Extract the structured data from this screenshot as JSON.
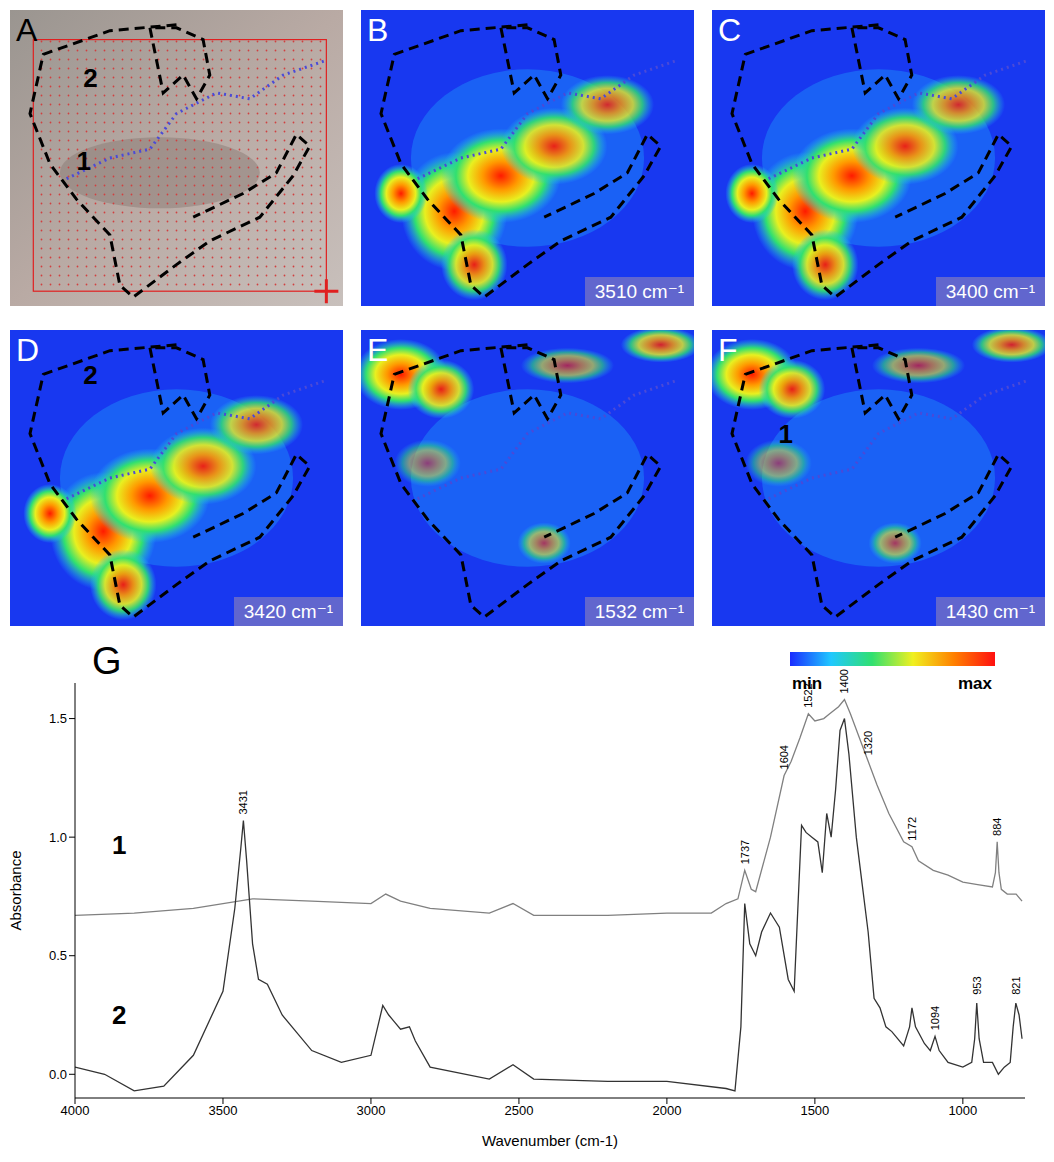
{
  "panels": [
    {
      "letter": "A",
      "kind": "photo",
      "region_labels": [
        "2",
        "1"
      ]
    },
    {
      "letter": "B",
      "kind": "heatmap",
      "wavenumber": "3510 cm⁻¹",
      "region_labels": []
    },
    {
      "letter": "C",
      "kind": "heatmap",
      "wavenumber": "3400 cm⁻¹",
      "region_labels": []
    },
    {
      "letter": "D",
      "kind": "heatmap",
      "wavenumber": "3420 cm⁻¹",
      "region_labels": [
        "2"
      ]
    },
    {
      "letter": "E",
      "kind": "heatmap",
      "wavenumber": "1532 cm⁻¹",
      "region_labels": []
    },
    {
      "letter": "F",
      "kind": "heatmap",
      "wavenumber": "1430 cm⁻¹",
      "region_labels": [
        "1"
      ]
    }
  ],
  "colorbar": {
    "min_label": "min",
    "max_label": "max"
  },
  "chart_data": {
    "type": "line",
    "panel_letter": "G",
    "x_label": "Wavenumber (cm-1)",
    "y_label": "Absorbance",
    "xlim": [
      4000,
      790
    ],
    "xticks": [
      4000,
      3500,
      3000,
      2500,
      2000,
      1500,
      1000
    ],
    "ylim": [
      -0.1,
      1.65
    ],
    "yticks": [
      {
        "value": 0,
        "label": "0.0"
      },
      0.5,
      {
        "value": 1,
        "label": "1.0"
      },
      1.5
    ],
    "series": [
      {
        "name": "1",
        "color": "#808080",
        "x": [
          4000,
          3800,
          3600,
          3400,
          3200,
          3000,
          2950,
          2900,
          2800,
          2600,
          2520,
          2450,
          2200,
          2000,
          1850,
          1800,
          1760,
          1737,
          1715,
          1700,
          1650,
          1604,
          1580,
          1550,
          1522,
          1500,
          1470,
          1450,
          1420,
          1400,
          1380,
          1350,
          1320,
          1290,
          1250,
          1200,
          1172,
          1150,
          1100,
          1050,
          1000,
          950,
          900,
          890,
          884,
          878,
          870,
          850,
          820,
          800
        ],
        "values": [
          0.67,
          0.68,
          0.7,
          0.74,
          0.73,
          0.72,
          0.76,
          0.73,
          0.7,
          0.68,
          0.72,
          0.67,
          0.67,
          0.68,
          0.68,
          0.72,
          0.74,
          0.86,
          0.78,
          0.77,
          1.0,
          1.26,
          1.32,
          1.42,
          1.52,
          1.49,
          1.5,
          1.52,
          1.55,
          1.58,
          1.52,
          1.42,
          1.32,
          1.22,
          1.1,
          0.98,
          0.96,
          0.9,
          0.86,
          0.84,
          0.81,
          0.8,
          0.79,
          0.85,
          0.98,
          0.85,
          0.78,
          0.76,
          0.76,
          0.73
        ]
      },
      {
        "name": "2",
        "color": "#333333",
        "x": [
          4000,
          3900,
          3800,
          3700,
          3600,
          3500,
          3460,
          3440,
          3431,
          3420,
          3400,
          3380,
          3350,
          3300,
          3200,
          3100,
          3000,
          2960,
          2940,
          2920,
          2900,
          2870,
          2850,
          2800,
          2600,
          2520,
          2450,
          2200,
          2000,
          1800,
          1770,
          1750,
          1737,
          1720,
          1700,
          1680,
          1650,
          1620,
          1590,
          1570,
          1545,
          1530,
          1510,
          1490,
          1475,
          1460,
          1445,
          1430,
          1415,
          1400,
          1385,
          1360,
          1340,
          1320,
          1300,
          1280,
          1260,
          1240,
          1200,
          1180,
          1172,
          1160,
          1130,
          1110,
          1094,
          1080,
          1050,
          1000,
          970,
          960,
          953,
          945,
          930,
          900,
          880,
          860,
          840,
          830,
          821,
          810,
          800
        ],
        "values": [
          0.03,
          0.0,
          -0.07,
          -0.05,
          0.08,
          0.35,
          0.7,
          0.95,
          1.07,
          0.9,
          0.55,
          0.4,
          0.38,
          0.25,
          0.1,
          0.05,
          0.08,
          0.29,
          0.25,
          0.22,
          0.19,
          0.2,
          0.14,
          0.03,
          -0.02,
          0.04,
          -0.02,
          -0.03,
          -0.03,
          -0.06,
          -0.07,
          0.2,
          0.72,
          0.55,
          0.5,
          0.6,
          0.68,
          0.62,
          0.4,
          0.35,
          1.05,
          1.02,
          1.0,
          0.98,
          0.85,
          1.1,
          1.0,
          1.2,
          1.45,
          1.5,
          1.35,
          1.0,
          0.8,
          0.6,
          0.32,
          0.28,
          0.2,
          0.18,
          0.12,
          0.2,
          0.28,
          0.2,
          0.13,
          0.1,
          0.16,
          0.1,
          0.05,
          0.03,
          0.05,
          0.15,
          0.3,
          0.15,
          0.05,
          0.05,
          0.0,
          0.03,
          0.05,
          0.2,
          0.3,
          0.25,
          0.15
        ]
      }
    ],
    "annotations": [
      {
        "text": "3431",
        "x": 3431,
        "y": 1.07
      },
      {
        "text": "1737",
        "x": 1737,
        "y": 0.86
      },
      {
        "text": "1604",
        "x": 1604,
        "y": 1.26
      },
      {
        "text": "1522",
        "x": 1522,
        "y": 1.52
      },
      {
        "text": "1400",
        "x": 1400,
        "y": 1.58
      },
      {
        "text": "1320",
        "x": 1320,
        "y": 1.32
      },
      {
        "text": "1172",
        "x": 1172,
        "y": 0.96
      },
      {
        "text": "884",
        "x": 884,
        "y": 0.98
      },
      {
        "text": "1094",
        "x": 1094,
        "y": 0.16
      },
      {
        "text": "953",
        "x": 953,
        "y": 0.31
      },
      {
        "text": "821",
        "x": 821,
        "y": 0.31
      }
    ]
  }
}
